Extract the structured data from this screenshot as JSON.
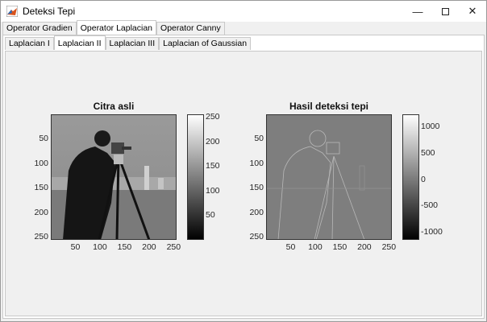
{
  "window": {
    "title": "Deteksi Tepi",
    "app_icon": "matlab-icon",
    "controls": [
      "minimize-icon",
      "maximize-icon",
      "close-icon"
    ]
  },
  "tabs": [
    {
      "label": "Operator Gradien"
    },
    {
      "label": "Operator Laplacian",
      "active": true
    },
    {
      "label": "Operator Canny"
    }
  ],
  "subtabs": [
    {
      "label": "Laplacian I"
    },
    {
      "label": "Laplacian II",
      "active": true
    },
    {
      "label": "Laplacian III"
    },
    {
      "label": "Laplacian of Gaussian"
    }
  ],
  "axes": [
    {
      "title": "Citra asli",
      "xticks": [
        "50",
        "100",
        "150",
        "200",
        "250"
      ],
      "yticks": [
        "50",
        "100",
        "150",
        "200",
        "250"
      ],
      "colorbar": {
        "ticks": [
          "250",
          "200",
          "150",
          "100",
          "50"
        ],
        "range": [
          0,
          255
        ]
      }
    },
    {
      "title": "Hasil deteksi tepi",
      "xticks": [
        "50",
        "100",
        "150",
        "200",
        "250"
      ],
      "yticks": [
        "50",
        "100",
        "150",
        "200",
        "250"
      ],
      "colorbar": {
        "ticks": [
          "1000",
          "500",
          "0",
          "-500",
          "-1000"
        ],
        "range": [
          -1150,
          1230
        ]
      }
    }
  ]
}
